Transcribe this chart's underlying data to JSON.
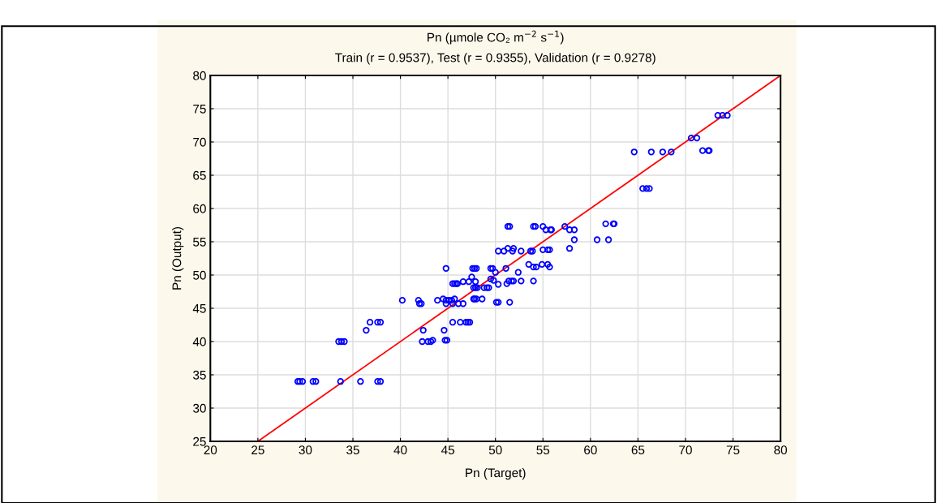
{
  "chart_data": {
    "type": "scatter",
    "title": "Pn (µmole CO₂ m$^{−2}$ s$^{−1}$)",
    "subtitle": "Train (r = 0.9537), Test (r = 0.9355), Validation (r = 0.9278)",
    "xlabel": "Pn (Target)",
    "ylabel": "Pn (Output)",
    "xlim": [
      20,
      80
    ],
    "ylim": [
      25,
      80
    ],
    "xticks": [
      20,
      25,
      30,
      35,
      40,
      45,
      50,
      55,
      60,
      65,
      70,
      75,
      80
    ],
    "yticks": [
      25,
      30,
      35,
      40,
      45,
      50,
      55,
      60,
      65,
      70,
      75,
      80
    ],
    "grid": true,
    "marker": "circle",
    "series": [
      {
        "color": "#0000ff",
        "x": [
          29.2,
          29.4,
          29.7,
          30.8,
          31.1,
          33.7,
          35.8,
          37.6,
          37.9,
          33.5,
          33.8,
          34.1,
          42.3,
          42.9,
          43.2,
          43.4,
          44.7,
          44.9,
          36.4,
          42.4,
          44.6,
          36.8,
          37.6,
          37.9,
          45.5,
          46.3,
          46.9,
          47.1,
          47.3,
          40.2,
          41.9,
          43.9,
          44.8,
          45.1,
          45.4,
          42.0,
          42.2,
          44.8,
          45.5,
          46.1,
          46.6,
          44.5,
          45.7,
          47.7,
          47.8,
          48.0,
          48.6,
          50.1,
          50.3,
          51.5,
          45.5,
          45.7,
          45.9,
          46.0,
          51.2,
          46.6,
          47.2,
          47.9,
          47.5,
          49.5,
          47.7,
          47.9,
          48.1,
          48.8,
          49.1,
          49.3,
          49.8,
          51.4,
          51.7,
          51.9,
          52.7,
          54.0,
          50.3,
          44.8,
          47.6,
          47.8,
          48.0,
          49.5,
          49.7,
          51.1,
          50.0,
          52.4,
          50.3,
          50.9,
          51.8,
          52.7,
          53.7,
          53.9,
          51.3,
          51.9,
          57.8,
          55.0,
          55.5,
          55.7,
          58.3,
          60.7,
          61.9,
          53.5,
          54.9,
          55.5,
          54.0,
          54.3,
          55.7,
          51.3,
          51.5,
          54.0,
          54.2,
          55.0,
          57.3,
          55.3,
          55.8,
          55.9,
          57.8,
          58.3,
          61.6,
          62.4,
          62.5,
          65.5,
          65.9,
          66.2,
          64.6,
          66.4,
          67.6,
          68.5,
          71.8,
          72.4,
          72.5,
          70.6,
          71.2,
          73.4,
          73.9,
          74.4
        ],
        "values": [
          34.0,
          34.0,
          34.0,
          34.0,
          34.0,
          34.0,
          34.0,
          34.0,
          34.0,
          40.0,
          40.0,
          40.0,
          40.0,
          40.0,
          40.0,
          40.2,
          40.2,
          40.2,
          41.7,
          41.7,
          41.7,
          42.9,
          42.9,
          42.9,
          42.9,
          42.9,
          42.9,
          42.9,
          42.9,
          46.2,
          46.2,
          46.2,
          46.2,
          46.2,
          46.2,
          45.7,
          45.7,
          45.7,
          45.7,
          45.7,
          45.7,
          46.4,
          46.4,
          46.4,
          46.4,
          46.4,
          46.4,
          45.9,
          45.9,
          45.9,
          48.7,
          48.7,
          48.7,
          48.7,
          48.7,
          49.0,
          49.0,
          49.0,
          49.7,
          49.4,
          48.1,
          48.1,
          48.1,
          48.1,
          48.1,
          48.1,
          49.2,
          49.1,
          49.1,
          49.1,
          49.1,
          49.1,
          48.6,
          51.0,
          51.0,
          51.0,
          51.0,
          51.0,
          51.0,
          51.0,
          50.4,
          50.4,
          53.6,
          53.6,
          53.6,
          53.6,
          53.6,
          53.6,
          54.0,
          54.0,
          54.0,
          53.8,
          53.8,
          53.8,
          55.3,
          55.3,
          55.3,
          51.6,
          51.6,
          51.6,
          51.2,
          51.2,
          51.2,
          57.3,
          57.3,
          57.3,
          57.3,
          57.3,
          57.3,
          56.8,
          56.8,
          56.8,
          56.8,
          56.8,
          57.7,
          57.7,
          57.7,
          63.0,
          63.0,
          63.0,
          68.5,
          68.5,
          68.5,
          68.5,
          68.7,
          68.7,
          68.7,
          70.6,
          70.6,
          74.0,
          74.0,
          74.0
        ]
      },
      {
        "type": "line",
        "color": "#ff0000",
        "marker": "none",
        "x": [
          25,
          80
        ],
        "values": [
          25,
          80
        ]
      }
    ]
  }
}
